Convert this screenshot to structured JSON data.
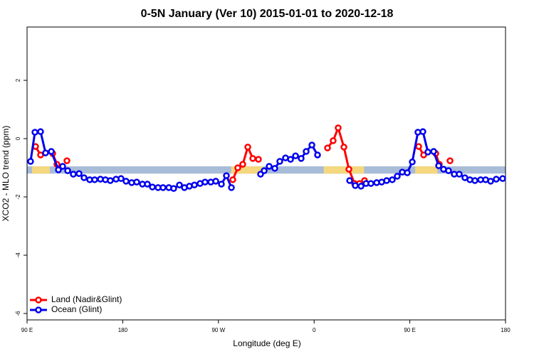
{
  "chart_data": {
    "type": "line",
    "title": "0-5N January (Ver 10)   2015-01-01 to 2020-12-18",
    "xlabel": "Longitude (deg E)",
    "ylabel": "XCO2 - MLO trend (ppm)",
    "xlim": [
      90,
      540
    ],
    "ylim": [
      -6.22,
      3.83
    ],
    "xticks": [
      {
        "value": 90,
        "label": "90 E"
      },
      {
        "value": 180,
        "label": "180"
      },
      {
        "value": 270,
        "label": "90 W"
      },
      {
        "value": 360,
        "label": "0"
      },
      {
        "value": 450,
        "label": "90 E"
      },
      {
        "value": 540,
        "label": "180"
      }
    ],
    "yticks": [
      2,
      0,
      -2,
      -4,
      -6
    ],
    "legend": "bottom-left",
    "band": {
      "range": [
        -1.2,
        -0.95
      ],
      "color": "#a8bcd8",
      "land_color": "#f5d77e",
      "land_ranges": [
        [
          94.7,
          111.4
        ],
        [
          282,
          312
        ],
        [
          369,
          407
        ],
        [
          455,
          476
        ]
      ]
    },
    "series": [
      {
        "name": "Land (Nadir&Glint)",
        "color": "#ff0000",
        "x": [
          98.0,
          102.7,
          null,
          114.1,
          118.1,
          null,
          127.5,
          null,
          283.5,
          288.2,
          292.9,
          297.6,
          302.3,
          307.6,
          null,
          372.6,
          377.9,
          382.6,
          388.0,
          392.7,
          398.0,
          402.7,
          407.4,
          null,
          458.3,
          463.0,
          null,
          474.4,
          477.7,
          null,
          487.8
        ],
        "values": [
          -0.27,
          -0.56,
          null,
          -0.51,
          -0.88,
          null,
          -0.76,
          null,
          -1.41,
          -1.0,
          -0.88,
          -0.29,
          -0.68,
          -0.71,
          null,
          -0.32,
          -0.07,
          0.37,
          -0.29,
          -1.05,
          -1.54,
          -1.54,
          -1.44,
          null,
          -0.27,
          -0.56,
          null,
          -0.51,
          -0.88,
          null,
          -0.76
        ]
      },
      {
        "name": "Ocean (Glint)",
        "color": "#0000ee",
        "x": [
          93.3,
          97.4,
          102.7,
          107.4,
          112.8,
          119.5,
          123.5,
          128.2,
          133.5,
          138.9,
          143.6,
          148.9,
          153.6,
          159.0,
          163.7,
          168.3,
          173.7,
          178.4,
          183.1,
          188.4,
          193.1,
          198.5,
          203.2,
          207.9,
          213.2,
          217.9,
          223.3,
          227.9,
          233.3,
          238.0,
          242.7,
          247.4,
          252.7,
          257.4,
          262.8,
          267.5,
          272.8,
          277.5,
          282.2,
          null,
          309.6,
          313.0,
          317.7,
          323.0,
          327.7,
          333.1,
          337.8,
          342.5,
          347.8,
          352.5,
          357.9,
          363.2,
          null,
          393.4,
          398.7,
          404.1,
          408.8,
          413.4,
          418.8,
          423.5,
          428.2,
          433.5,
          438.2,
          442.9,
          447.6,
          452.3,
          457.6,
          462.3,
          467.0,
          472.4,
          477.1,
          481.7,
          486.4,
          491.8,
          496.5,
          501.8,
          506.5,
          511.2,
          516.6,
          521.3,
          526.0,
          531.3,
          537.3
        ],
        "values": [
          -0.78,
          0.22,
          0.24,
          -0.49,
          -0.44,
          -1.07,
          -0.95,
          -1.1,
          -1.22,
          -1.2,
          -1.34,
          -1.41,
          -1.41,
          -1.39,
          -1.41,
          -1.44,
          -1.39,
          -1.37,
          -1.46,
          -1.51,
          -1.49,
          -1.56,
          -1.56,
          -1.66,
          -1.68,
          -1.68,
          -1.68,
          -1.71,
          -1.59,
          -1.68,
          -1.63,
          -1.59,
          -1.54,
          -1.49,
          -1.49,
          -1.46,
          -1.56,
          -1.27,
          -1.68,
          null,
          -1.22,
          -1.1,
          -0.95,
          -1.02,
          -0.78,
          -0.66,
          -0.71,
          -0.59,
          -0.68,
          -0.44,
          -0.22,
          -0.56,
          null,
          -1.44,
          -1.61,
          -1.63,
          -1.54,
          -1.54,
          -1.51,
          -1.49,
          -1.44,
          -1.41,
          -1.29,
          -1.15,
          -1.17,
          -0.8,
          0.22,
          0.24,
          -0.46,
          -0.44,
          -0.93,
          -1.05,
          -1.1,
          -1.22,
          -1.22,
          -1.34,
          -1.41,
          -1.44,
          -1.41,
          -1.41,
          -1.46,
          -1.39,
          -1.37
        ]
      }
    ]
  }
}
